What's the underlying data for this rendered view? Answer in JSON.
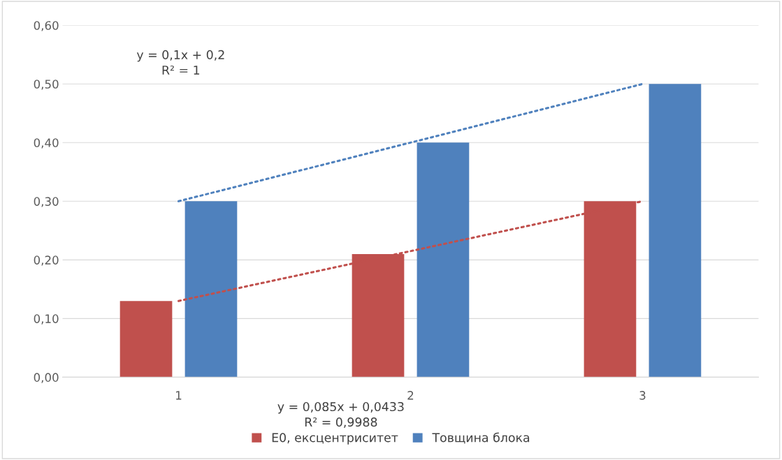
{
  "chart_data": {
    "type": "bar",
    "categories": [
      "1",
      "2",
      "3"
    ],
    "series": [
      {
        "name": "E0, ексцентриситет",
        "color": "#c0504d",
        "values": [
          0.13,
          0.21,
          0.3
        ]
      },
      {
        "name": "Товщина блока",
        "color": "#4f81bd",
        "values": [
          0.3,
          0.4,
          0.5
        ]
      },
      {
        "type": "line",
        "x": [
          "1",
          "3"
        ],
        "values": [
          0.13,
          0.3
        ],
        "color": "#c0504d",
        "line_style": "dotted"
      },
      {
        "type": "line",
        "x": [
          "1",
          "3"
        ],
        "values": [
          0.3,
          0.5
        ],
        "color": "#4f81bd",
        "line_style": "dotted"
      }
    ],
    "ylim": [
      0,
      0.6
    ],
    "yticks": [
      {
        "value": 0,
        "label": "0,00"
      },
      {
        "value": 0.1,
        "label": "0,10"
      },
      {
        "value": 0.2,
        "label": "0,20"
      },
      {
        "value": 0.3,
        "label": "0,30"
      },
      {
        "value": 0.4,
        "label": "0,40"
      },
      {
        "value": 0.5,
        "label": "0,50"
      },
      {
        "value": 0.6,
        "label": "0,60"
      }
    ],
    "grid": "y",
    "legend": "bottom",
    "marker": "none",
    "annotations": [
      "y = 0,1x + 0,2\nR² = 1",
      "y = 0,085x + 0,0433\nR² = 0,9988"
    ]
  }
}
